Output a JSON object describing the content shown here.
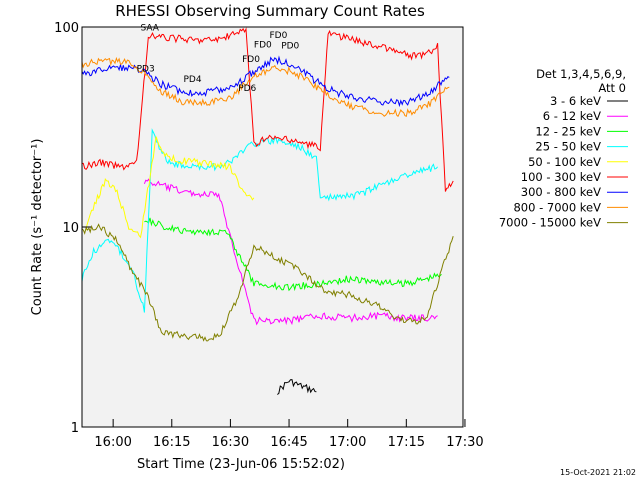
{
  "chart_data": {
    "type": "line",
    "title": "RHESSI Observing Summary Count Rates",
    "xlabel": "Start Time (23-Jun-06 15:52:02)",
    "ylabel": "Count Rate (s⁻¹ detector⁻¹)",
    "yscale": "log",
    "ylim": [
      1,
      100
    ],
    "xlim": [
      "15:52:02",
      "17:29:30"
    ],
    "x_ticks": [
      "16:00",
      "16:15",
      "16:30",
      "16:45",
      "17:00",
      "17:15",
      "17:30"
    ],
    "y_ticks": [
      "1",
      "10",
      "100"
    ],
    "legend_header": [
      "Det 1,3,4,5,6,9,",
      "Att 0"
    ],
    "legend_placement": "right",
    "series": [
      {
        "name": "3 - 6 keV",
        "color": "#000000",
        "points": [
          [
            "16:42",
            1.5
          ],
          [
            "16:45",
            1.7
          ],
          [
            "16:48",
            1.6
          ],
          [
            "16:52",
            1.5
          ]
        ]
      },
      {
        "name": "6 - 12 keV",
        "color": "#ff00ff",
        "points": [
          [
            "16:08",
            17
          ],
          [
            "16:13",
            16
          ],
          [
            "16:18",
            15
          ],
          [
            "16:23",
            14.5
          ],
          [
            "16:27",
            14.5
          ],
          [
            "16:36",
            3.4
          ],
          [
            "16:45",
            3.4
          ],
          [
            "16:53",
            3.6
          ],
          [
            "17:00",
            3.5
          ],
          [
            "17:08",
            3.6
          ],
          [
            "17:14",
            3.5
          ],
          [
            "17:20",
            3.5
          ],
          [
            "17:23",
            3.6
          ]
        ]
      },
      {
        "name": "12 - 25 keV",
        "color": "#00ff00",
        "points": [
          [
            "16:08",
            11
          ],
          [
            "16:13",
            10
          ],
          [
            "16:18",
            9.5
          ],
          [
            "16:23",
            9.5
          ],
          [
            "16:29",
            9.5
          ],
          [
            "16:36",
            5.2
          ],
          [
            "16:45",
            5.0
          ],
          [
            "16:53",
            5.2
          ],
          [
            "17:00",
            5.5
          ],
          [
            "17:08",
            5.3
          ],
          [
            "17:14",
            5.2
          ],
          [
            "17:20",
            5.5
          ],
          [
            "17:24",
            5.8
          ]
        ]
      },
      {
        "name": "25 - 50 keV",
        "color": "#00ffff",
        "points": [
          [
            "15:52",
            5.5
          ],
          [
            "15:55",
            7.5
          ],
          [
            "15:58",
            8.5
          ],
          [
            "16:01",
            8.0
          ],
          [
            "16:05",
            6.0
          ],
          [
            "16:08",
            3.8
          ],
          [
            "16:10",
            30
          ],
          [
            "16:14",
            21
          ],
          [
            "16:20",
            20
          ],
          [
            "16:26",
            20
          ],
          [
            "16:30",
            21
          ],
          [
            "16:35",
            26
          ],
          [
            "16:42",
            27
          ],
          [
            "16:48",
            25
          ],
          [
            "16:52",
            22
          ],
          [
            "16:53",
            14
          ],
          [
            "16:57",
            14
          ],
          [
            "17:03",
            14.5
          ],
          [
            "17:08",
            16
          ],
          [
            "17:12",
            17.5
          ],
          [
            "17:15",
            18
          ],
          [
            "17:18",
            19
          ],
          [
            "17:23",
            20
          ]
        ]
      },
      {
        "name": "50 - 100 keV",
        "color": "#ffff00",
        "points": [
          [
            "15:53",
            10
          ],
          [
            "15:56",
            14
          ],
          [
            "15:58",
            17
          ],
          [
            "16:01",
            15
          ],
          [
            "16:04",
            10
          ],
          [
            "16:07",
            9
          ],
          [
            "16:11",
            28
          ],
          [
            "16:14",
            22
          ],
          [
            "16:30",
            20
          ],
          [
            "16:33",
            15
          ],
          [
            "16:36",
            14
          ]
        ]
      },
      {
        "name": "100 - 300 keV",
        "color": "#ff0000",
        "points": [
          [
            "15:52",
            20
          ],
          [
            "15:57",
            21
          ],
          [
            "16:02",
            20
          ],
          [
            "16:06",
            21
          ],
          [
            "16:09",
            90
          ],
          [
            "16:15",
            88
          ],
          [
            "16:21",
            86
          ],
          [
            "16:27",
            87
          ],
          [
            "16:31",
            92
          ],
          [
            "16:34",
            97
          ],
          [
            "16:36",
            26
          ],
          [
            "16:40",
            28
          ],
          [
            "16:46",
            27
          ],
          [
            "16:53",
            25
          ],
          [
            "16:55",
            93
          ],
          [
            "17:03",
            85
          ],
          [
            "17:10",
            78
          ],
          [
            "17:16",
            72
          ],
          [
            "17:20",
            72
          ],
          [
            "17:23",
            80
          ],
          [
            "17:25",
            15
          ],
          [
            "17:27",
            17
          ]
        ]
      },
      {
        "name": "300 - 800 keV",
        "color": "#0000ff",
        "points": [
          [
            "15:52",
            58
          ],
          [
            "15:58",
            62
          ],
          [
            "16:04",
            63
          ],
          [
            "16:08",
            60
          ],
          [
            "16:12",
            52
          ],
          [
            "16:18",
            47
          ],
          [
            "16:24",
            47
          ],
          [
            "16:30",
            50
          ],
          [
            "16:35",
            58
          ],
          [
            "16:41",
            69
          ],
          [
            "16:46",
            65
          ],
          [
            "16:51",
            55
          ],
          [
            "16:57",
            47
          ],
          [
            "17:03",
            44
          ],
          [
            "17:09",
            42
          ],
          [
            "17:15",
            42
          ],
          [
            "17:20",
            46
          ],
          [
            "17:26",
            56
          ]
        ]
      },
      {
        "name": "800 - 7000 keV",
        "color": "#ff8c00",
        "points": [
          [
            "15:52",
            65
          ],
          [
            "15:58",
            68
          ],
          [
            "16:04",
            66
          ],
          [
            "16:08",
            60
          ],
          [
            "16:12",
            48
          ],
          [
            "16:18",
            42
          ],
          [
            "16:24",
            42
          ],
          [
            "16:30",
            44
          ],
          [
            "16:35",
            55
          ],
          [
            "16:41",
            62
          ],
          [
            "16:46",
            60
          ],
          [
            "16:51",
            52
          ],
          [
            "16:57",
            43
          ],
          [
            "17:03",
            39
          ],
          [
            "17:09",
            37
          ],
          [
            "17:15",
            37
          ],
          [
            "17:20",
            40
          ],
          [
            "17:26",
            50
          ]
        ]
      },
      {
        "name": "7000 - 15000 keV",
        "color": "#808000",
        "points": [
          [
            "15:52",
            9.5
          ],
          [
            "15:57",
            10
          ],
          [
            "16:01",
            8.5
          ],
          [
            "16:05",
            6
          ],
          [
            "16:09",
            4.5
          ],
          [
            "16:12",
            3
          ],
          [
            "16:20",
            2.8
          ],
          [
            "16:27",
            2.8
          ],
          [
            "16:32",
            4.5
          ],
          [
            "16:36",
            8
          ],
          [
            "16:42",
            7
          ],
          [
            "16:48",
            6
          ],
          [
            "16:54",
            4.8
          ],
          [
            "17:00",
            4.6
          ],
          [
            "17:08",
            4.0
          ],
          [
            "17:14",
            3.4
          ],
          [
            "17:20",
            3.4
          ],
          [
            "17:24",
            6
          ],
          [
            "17:27",
            9
          ]
        ]
      }
    ],
    "annotations": [
      {
        "text": "SAA",
        "x": "16:07",
        "y": 96
      },
      {
        "text": "PD3",
        "x": "16:06",
        "y": 60
      },
      {
        "text": "PD4",
        "x": "16:18",
        "y": 53
      },
      {
        "text": "FD0",
        "x": "16:36",
        "y": 79
      },
      {
        "text": "FD0",
        "x": "16:33",
        "y": 67
      },
      {
        "text": "PD6",
        "x": "16:32",
        "y": 48
      },
      {
        "text": "FD0",
        "x": "16:40",
        "y": 88
      },
      {
        "text": "PD0",
        "x": "16:43",
        "y": 78
      }
    ]
  },
  "timestamp": "15-Oct-2021 21:02"
}
